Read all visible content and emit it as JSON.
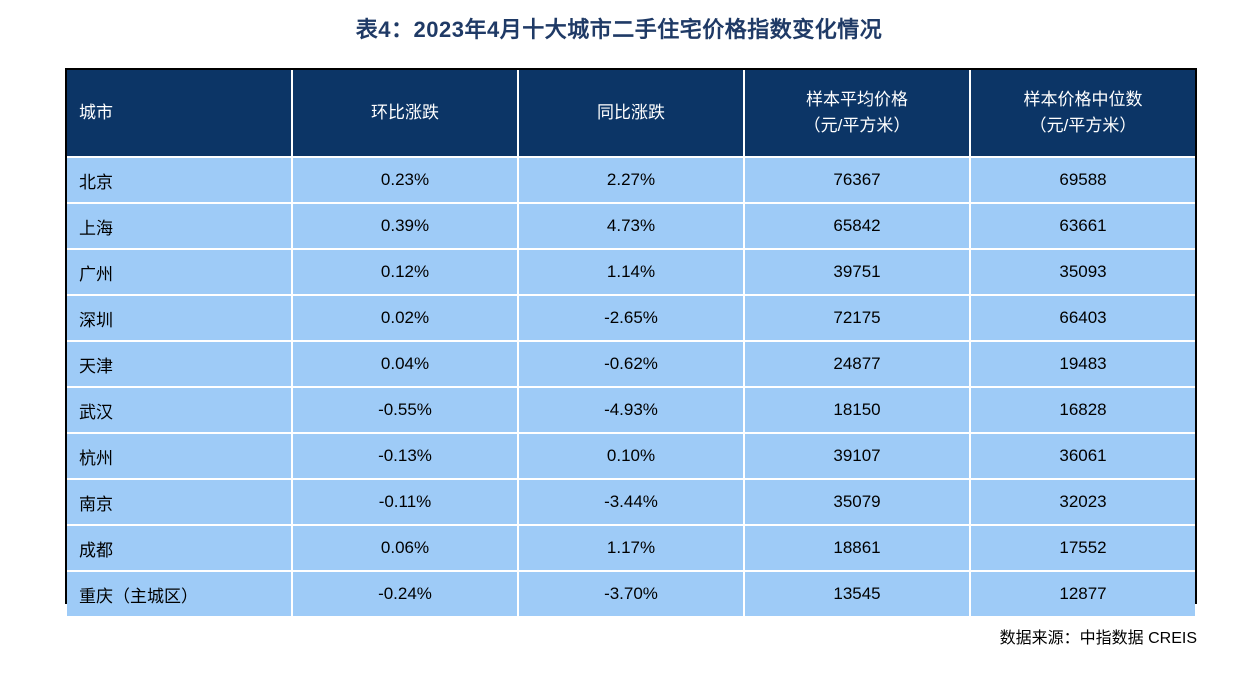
{
  "title": "表4：2023年4月十大城市二手住宅价格指数变化情况",
  "table": {
    "headers": [
      {
        "line1": "城市",
        "line2": ""
      },
      {
        "line1": "环比涨跌",
        "line2": ""
      },
      {
        "line1": "同比涨跌",
        "line2": ""
      },
      {
        "line1": "样本平均价格",
        "line2": "（元/平方米）"
      },
      {
        "line1": "样本价格中位数",
        "line2": "（元/平方米）"
      }
    ],
    "rows": [
      [
        "北京",
        "0.23%",
        "2.27%",
        "76367",
        "69588"
      ],
      [
        "上海",
        "0.39%",
        "4.73%",
        "65842",
        "63661"
      ],
      [
        "广州",
        "0.12%",
        "1.14%",
        "39751",
        "35093"
      ],
      [
        "深圳",
        "0.02%",
        "-2.65%",
        "72175",
        "66403"
      ],
      [
        "天津",
        "0.04%",
        "-0.62%",
        "24877",
        "19483"
      ],
      [
        "武汉",
        "-0.55%",
        "-4.93%",
        "18150",
        "16828"
      ],
      [
        "杭州",
        "-0.13%",
        "0.10%",
        "39107",
        "36061"
      ],
      [
        "南京",
        "-0.11%",
        "-3.44%",
        "35079",
        "32023"
      ],
      [
        "成都",
        "0.06%",
        "1.17%",
        "18861",
        "17552"
      ],
      [
        "重庆（主城区）",
        "-0.24%",
        "-3.70%",
        "13545",
        "12877"
      ]
    ]
  },
  "source": "数据来源：中指数据 CREIS",
  "colors": {
    "title": "#1f3a66",
    "header_bg": "#0c3566",
    "row_bg": "#9ecbf7",
    "border": "#ffffff"
  }
}
